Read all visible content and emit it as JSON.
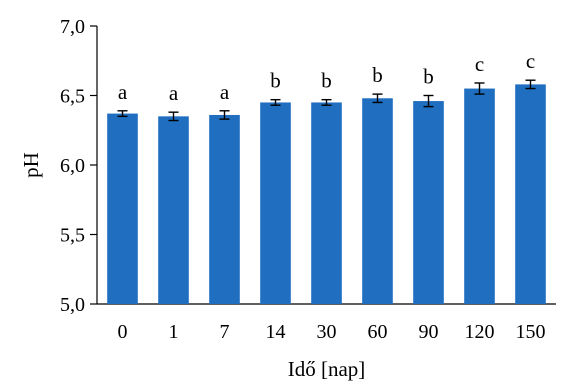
{
  "chart_data": {
    "type": "bar",
    "categories": [
      "0",
      "1",
      "7",
      "14",
      "30",
      "60",
      "90",
      "120",
      "150"
    ],
    "values": [
      6.37,
      6.35,
      6.36,
      6.45,
      6.45,
      6.48,
      6.46,
      6.55,
      6.58
    ],
    "errors": [
      0.02,
      0.03,
      0.03,
      0.02,
      0.02,
      0.03,
      0.04,
      0.04,
      0.03
    ],
    "letters": [
      "a",
      "a",
      "a",
      "b",
      "b",
      "b",
      "b",
      "c",
      "c"
    ],
    "xlabel": "Idő [nap]",
    "ylabel": "pH",
    "ylim": [
      5.0,
      7.0
    ],
    "yticks": [
      "5,0",
      "5,5",
      "6,0",
      "6,5",
      "7,0"
    ],
    "ytick_values": [
      5.0,
      5.5,
      6.0,
      6.5,
      7.0
    ],
    "grid": false,
    "bar_color": "#1F6EBF"
  }
}
